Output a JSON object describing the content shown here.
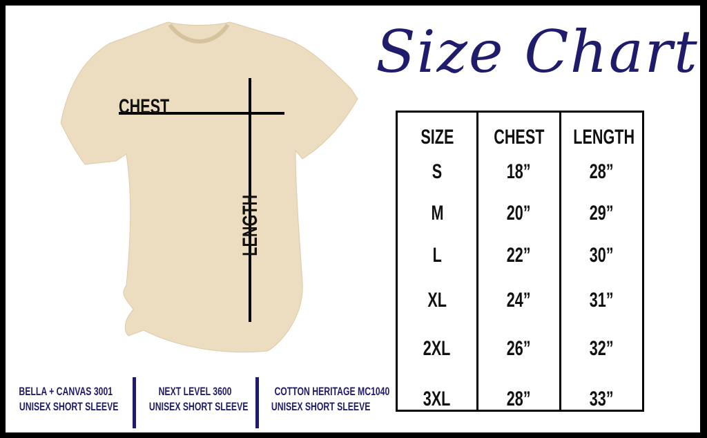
{
  "title": "Size Chart",
  "shirt": {
    "chest_label": "CHEST",
    "length_label": "LENGTH",
    "color": "#ecdcc0"
  },
  "table": {
    "headers": [
      "SIZE",
      "CHEST",
      "LENGTH"
    ],
    "rows": [
      [
        "S",
        "18”",
        "28”"
      ],
      [
        "M",
        "20”",
        "29”"
      ],
      [
        "L",
        "22”",
        "30”"
      ],
      [
        "XL",
        "24”",
        "31”"
      ],
      [
        "2XL",
        "26”",
        "32”"
      ],
      [
        "3XL",
        "28”",
        "33”"
      ]
    ]
  },
  "models": [
    {
      "line1": "BELLA + CANVAS 3001",
      "line2": "UNISEX SHORT SLEEVE"
    },
    {
      "line1": "NEXT LEVEL 3600",
      "line2": "UNISEX SHORT SLEEVE"
    },
    {
      "line1": "COTTON HERITAGE MC1040",
      "line2": "UNISEX SHORT SLEEVE"
    }
  ],
  "colors": {
    "accent": "#1f1c6b",
    "border": "#000000"
  }
}
